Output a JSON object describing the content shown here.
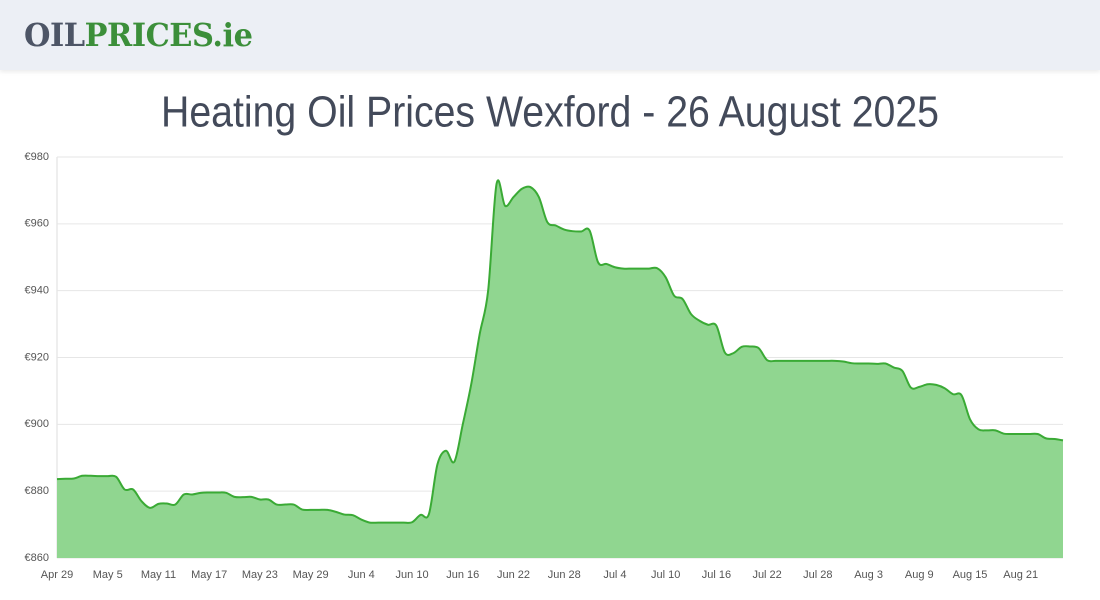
{
  "header": {
    "logo_oil": "OIL",
    "logo_prices": "PRICES",
    "logo_tld": ".ie"
  },
  "chart_data": {
    "type": "area",
    "title": "Heating Oil Prices Wexford - 26 August 2025",
    "categories": [
      "Apr 29",
      null,
      null,
      null,
      null,
      null,
      "May 5",
      null,
      null,
      null,
      null,
      null,
      "May 11",
      null,
      null,
      null,
      null,
      null,
      "May 17",
      null,
      null,
      null,
      null,
      null,
      "May 23",
      null,
      null,
      null,
      null,
      null,
      "May 29",
      null,
      null,
      null,
      null,
      null,
      "Jun 4",
      null,
      null,
      null,
      null,
      null,
      "Jun 10",
      null,
      null,
      null,
      null,
      null,
      "Jun 16",
      null,
      null,
      null,
      null,
      null,
      "Jun 22",
      null,
      null,
      null,
      null,
      null,
      "Jun 28",
      null,
      null,
      null,
      null,
      null,
      "Jul 4",
      null,
      null,
      null,
      null,
      null,
      "Jul 10",
      null,
      null,
      null,
      null,
      null,
      "Jul 16",
      null,
      null,
      null,
      null,
      null,
      "Jul 22",
      null,
      null,
      null,
      null,
      null,
      "Jul 28",
      null,
      null,
      null,
      null,
      null,
      "Aug 3",
      null,
      null,
      null,
      null,
      null,
      "Aug 9",
      null,
      null,
      null,
      null,
      null,
      "Aug 15",
      null,
      null,
      null,
      null,
      null,
      "Aug 21",
      null,
      null,
      null,
      null,
      null
    ],
    "values": [
      883.6,
      883.7,
      883.8,
      884.6,
      884.6,
      884.5,
      884.5,
      884.3,
      880.5,
      880.5,
      877,
      875,
      876.2,
      876.3,
      876,
      879,
      879,
      879.5,
      879.6,
      879.6,
      879.5,
      878.3,
      878.2,
      878.3,
      877.5,
      877.5,
      876,
      876,
      876,
      874.5,
      874.4,
      874.4,
      874.4,
      873.8,
      873,
      872.8,
      871.5,
      870.6,
      870.6,
      870.6,
      870.6,
      870.6,
      870.7,
      872.9,
      873.2,
      888,
      892.1,
      888.8,
      900,
      912,
      927,
      940,
      972,
      965.4,
      968,
      970.5,
      971,
      968,
      960.5,
      959.5,
      958.3,
      957.8,
      957.7,
      958,
      948.5,
      948,
      947,
      946.6,
      946.6,
      946.6,
      946.6,
      946.7,
      944,
      938.5,
      937.5,
      933,
      931,
      929.8,
      929.5,
      921.5,
      921.3,
      923.2,
      923.3,
      922.8,
      919.2,
      919,
      919,
      919,
      919,
      919,
      919,
      919,
      919,
      918.8,
      918.3,
      918.2,
      918.2,
      918.1,
      918.2,
      917,
      916,
      911,
      911.2,
      912,
      911.8,
      910.8,
      909,
      908.7,
      901.5,
      898.5,
      898.2,
      898.2,
      897.2,
      897.1,
      897.1,
      897.1,
      897.1,
      895.8,
      895.6,
      895.2
    ],
    "color": "#3aaa35",
    "fill_color": "#90d690",
    "ylim": [
      860,
      980
    ],
    "yticks": [
      {
        "value": 860,
        "label": "€860"
      },
      {
        "value": 880,
        "label": "€880"
      },
      {
        "value": 900,
        "label": "€900"
      },
      {
        "value": 920,
        "label": "€920"
      },
      {
        "value": 940,
        "label": "€940"
      },
      {
        "value": 960,
        "label": "€960"
      },
      {
        "value": 980,
        "label": "€980"
      }
    ],
    "grid": true
  }
}
